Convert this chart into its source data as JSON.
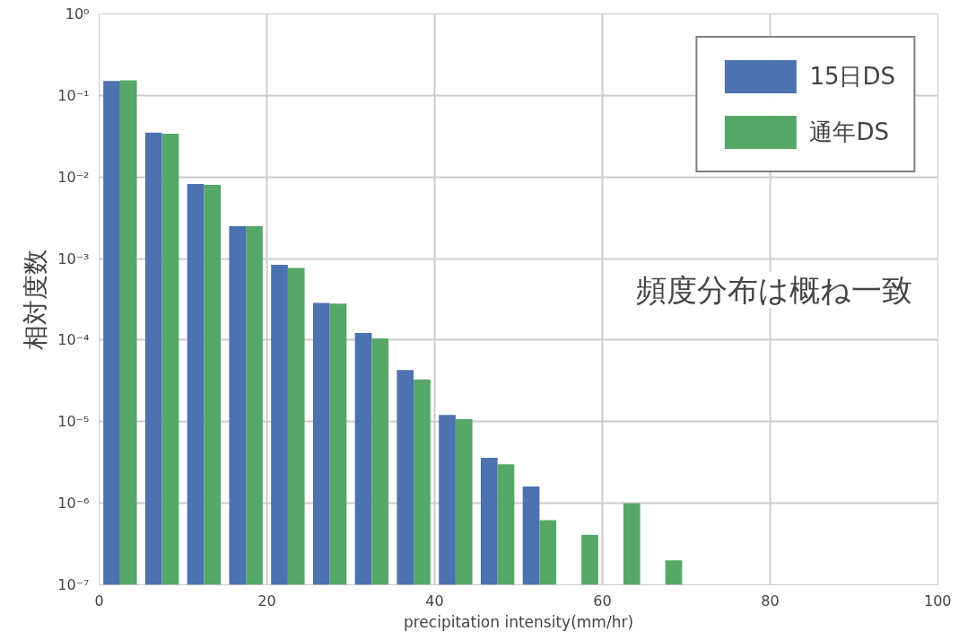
{
  "chart_data": {
    "type": "histogram",
    "xlabel": "precipitation intensity(mm/hr)",
    "ylabel": "相対度数",
    "bins": [
      0,
      5,
      10,
      15,
      20,
      25,
      30,
      35,
      40,
      45,
      50,
      55,
      60,
      65,
      70
    ],
    "series": [
      {
        "name": "15日DS",
        "color": "#4c72b0",
        "values": [
          0.15,
          0.035,
          0.0082,
          0.0025,
          0.00084,
          0.000285,
          0.000122,
          4.3e-05,
          1.21e-05,
          3.6e-06,
          1.6e-06,
          null,
          null,
          null
        ]
      },
      {
        "name": "通年DS",
        "color": "#55a868",
        "values": [
          0.153,
          0.034,
          0.008,
          0.0025,
          0.00077,
          0.00028,
          0.000105,
          3.3e-05,
          1.07e-05,
          3e-06,
          6.2e-07,
          4.1e-07,
          1e-06,
          2e-07
        ]
      }
    ],
    "log": "y",
    "xlim": [
      0,
      100
    ],
    "xticks": [
      0,
      20,
      40,
      60,
      80,
      100
    ],
    "ylim": [
      1e-07,
      1
    ],
    "yticks": [
      {
        "value": 1e-07,
        "label": "10⁻⁷"
      },
      {
        "value": 1e-06,
        "label": "10⁻⁶"
      },
      {
        "value": 1e-05,
        "label": "10⁻⁵"
      },
      {
        "value": 0.0001,
        "label": "10⁻⁴"
      },
      {
        "value": 0.001,
        "label": "10⁻³"
      },
      {
        "value": 0.01,
        "label": "10⁻²"
      },
      {
        "value": 0.1,
        "label": "10⁻¹"
      },
      {
        "value": 1,
        "label": "10⁰"
      }
    ],
    "grid": true,
    "legend": "top right",
    "annotations": [
      "頻度分布は概ね一致"
    ]
  }
}
